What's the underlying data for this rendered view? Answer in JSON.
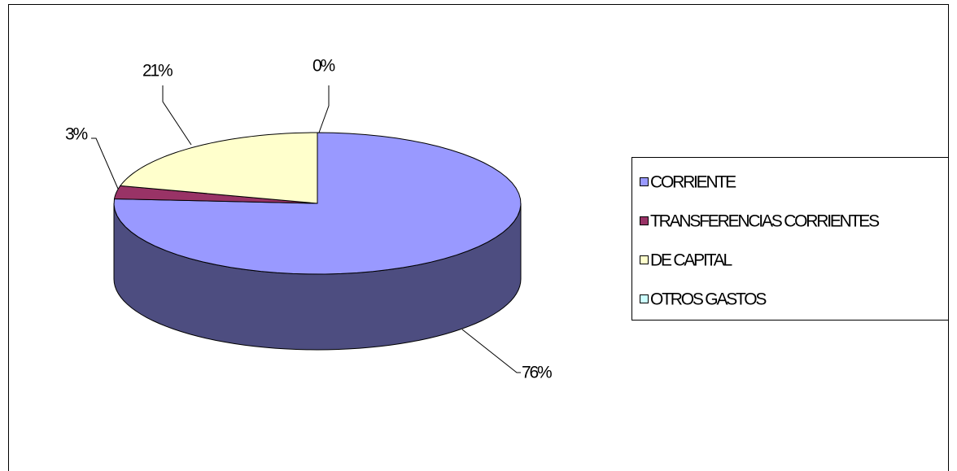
{
  "chart_data": {
    "type": "pie3d",
    "categories": [
      "CORRIENTE",
      "TRANSFERENCIAS CORRIENTES",
      "DE CAPITAL",
      "OTROS GASTOS"
    ],
    "values": [
      76,
      3,
      21,
      0
    ],
    "value_labels": [
      "76%",
      "3%",
      "21%",
      "0%"
    ],
    "colors": [
      "#9999ff",
      "#993366",
      "#ffffcc",
      "#ccffff"
    ],
    "legend": "right"
  }
}
